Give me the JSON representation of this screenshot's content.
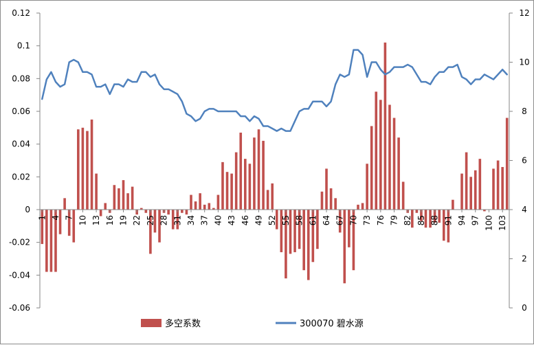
{
  "chart_data": {
    "type": "bar+line",
    "title": "",
    "grid": false,
    "legend_position": "bottom",
    "x_tick_labels": [
      "1",
      "4",
      "7",
      "10",
      "13",
      "16",
      "19",
      "22",
      "25",
      "28",
      "31",
      "34",
      "37",
      "40",
      "43",
      "46",
      "49",
      "52",
      "55",
      "58",
      "61",
      "64",
      "67",
      "70",
      "73",
      "76",
      "79",
      "82",
      "85",
      "88",
      "91",
      "94",
      "97",
      "100",
      "103"
    ],
    "y_left": {
      "min": -0.06,
      "max": 0.12,
      "tick_labels": [
        "0.12",
        "0.1",
        "0.08",
        "0.06",
        "0.04",
        "0.02",
        "0",
        "-0.02",
        "-0.04",
        "-0.06"
      ]
    },
    "y_right": {
      "min": 0,
      "max": 12,
      "tick_labels": [
        "12",
        "10",
        "8",
        "6",
        "4",
        "2",
        "0"
      ]
    },
    "series": [
      {
        "name": "多空系数",
        "type": "bar",
        "axis": "left",
        "color": "#c0504d",
        "x": [
          1,
          2,
          3,
          4,
          5,
          6,
          7,
          8,
          9,
          10,
          11,
          12,
          13,
          14,
          15,
          16,
          17,
          18,
          19,
          20,
          21,
          22,
          23,
          24,
          25,
          26,
          27,
          28,
          29,
          30,
          31,
          32,
          33,
          34,
          35,
          36,
          37,
          38,
          39,
          40,
          41,
          42,
          43,
          44,
          45,
          46,
          47,
          48,
          49,
          50,
          51,
          52,
          53,
          54,
          55,
          56,
          57,
          58,
          59,
          60,
          61,
          62,
          63,
          64,
          65,
          66,
          67,
          68,
          69,
          70,
          71,
          72,
          73,
          74,
          75,
          76,
          77,
          78,
          79,
          80,
          81,
          82,
          83,
          84,
          85,
          86,
          87,
          88,
          89,
          90,
          91,
          92,
          93,
          94,
          95,
          96,
          97,
          98,
          99,
          100,
          101,
          102,
          103,
          104
        ],
        "values": [
          -0.021,
          -0.038,
          -0.038,
          -0.038,
          -0.015,
          0.007,
          -0.016,
          -0.02,
          0.049,
          0.05,
          0.048,
          0.055,
          0.022,
          -0.004,
          0.004,
          -0.002,
          0.015,
          0.013,
          0.018,
          0.01,
          0.014,
          -0.003,
          0.001,
          -0.002,
          -0.027,
          -0.014,
          -0.02,
          -0.002,
          -0.003,
          -0.012,
          -0.012,
          -0.002,
          -0.003,
          0.009,
          0.005,
          0.01,
          0.003,
          0.004,
          0.001,
          0.009,
          0.029,
          0.023,
          0.022,
          0.035,
          0.047,
          0.031,
          0.028,
          0.044,
          0.049,
          0.042,
          0.012,
          0.016,
          -0.012,
          -0.026,
          -0.042,
          -0.027,
          -0.026,
          -0.024,
          -0.037,
          -0.043,
          -0.032,
          -0.024,
          0.011,
          0.025,
          0.013,
          0.007,
          -0.014,
          -0.045,
          -0.023,
          -0.037,
          0.003,
          0.004,
          0.028,
          0.051,
          0.072,
          0.067,
          0.102,
          0.064,
          0.056,
          0.044,
          0.017,
          -0.002,
          -0.011,
          -0.002,
          -0.007,
          -0.011,
          -0.011,
          -0.008,
          -0.008,
          -0.019,
          -0.02,
          0.006,
          0.0,
          0.022,
          0.035,
          0.02,
          0.024,
          0.031,
          -0.001,
          0.0,
          0.025,
          0.03,
          0.026,
          0.056
        ]
      },
      {
        "name": "300070 碧水源",
        "type": "line",
        "axis": "right",
        "color": "#4f81bd",
        "x": [
          1,
          2,
          3,
          4,
          5,
          6,
          7,
          8,
          9,
          10,
          11,
          12,
          13,
          14,
          15,
          16,
          17,
          18,
          19,
          20,
          21,
          22,
          23,
          24,
          25,
          26,
          27,
          28,
          29,
          30,
          31,
          32,
          33,
          34,
          35,
          36,
          37,
          38,
          39,
          40,
          41,
          42,
          43,
          44,
          45,
          46,
          47,
          48,
          49,
          50,
          51,
          52,
          53,
          54,
          55,
          56,
          57,
          58,
          59,
          60,
          61,
          62,
          63,
          64,
          65,
          66,
          67,
          68,
          69,
          70,
          71,
          72,
          73,
          74,
          75,
          76,
          77,
          78,
          79,
          80,
          81,
          82,
          83,
          84,
          85,
          86,
          87,
          88,
          89,
          90,
          91,
          92,
          93,
          94,
          95,
          96,
          97,
          98,
          99,
          100,
          101,
          102,
          103,
          104
        ],
        "values": [
          8.5,
          9.3,
          9.6,
          9.2,
          9.0,
          9.1,
          10.0,
          10.1,
          10.0,
          9.6,
          9.6,
          9.5,
          9.0,
          9.0,
          9.1,
          8.7,
          9.1,
          9.1,
          9.0,
          9.3,
          9.2,
          9.2,
          9.6,
          9.6,
          9.4,
          9.5,
          9.1,
          8.9,
          8.9,
          8.8,
          8.7,
          8.4,
          7.9,
          7.8,
          7.6,
          7.7,
          8.0,
          8.1,
          8.1,
          8.0,
          8.0,
          8.0,
          8.0,
          8.0,
          7.8,
          7.8,
          7.6,
          7.8,
          7.7,
          7.4,
          7.4,
          7.3,
          7.2,
          7.3,
          7.2,
          7.2,
          7.6,
          8.0,
          8.1,
          8.1,
          8.4,
          8.4,
          8.4,
          8.2,
          8.4,
          9.1,
          9.5,
          9.4,
          9.5,
          10.5,
          10.5,
          10.3,
          9.4,
          10.0,
          10.0,
          9.7,
          9.5,
          9.6,
          9.8,
          9.8,
          9.8,
          9.9,
          9.8,
          9.5,
          9.2,
          9.2,
          9.1,
          9.4,
          9.6,
          9.6,
          9.8,
          9.8,
          9.9,
          9.4,
          9.3,
          9.1,
          9.3,
          9.3,
          9.5,
          9.4,
          9.3,
          9.5,
          9.7,
          9.5
        ]
      }
    ]
  }
}
